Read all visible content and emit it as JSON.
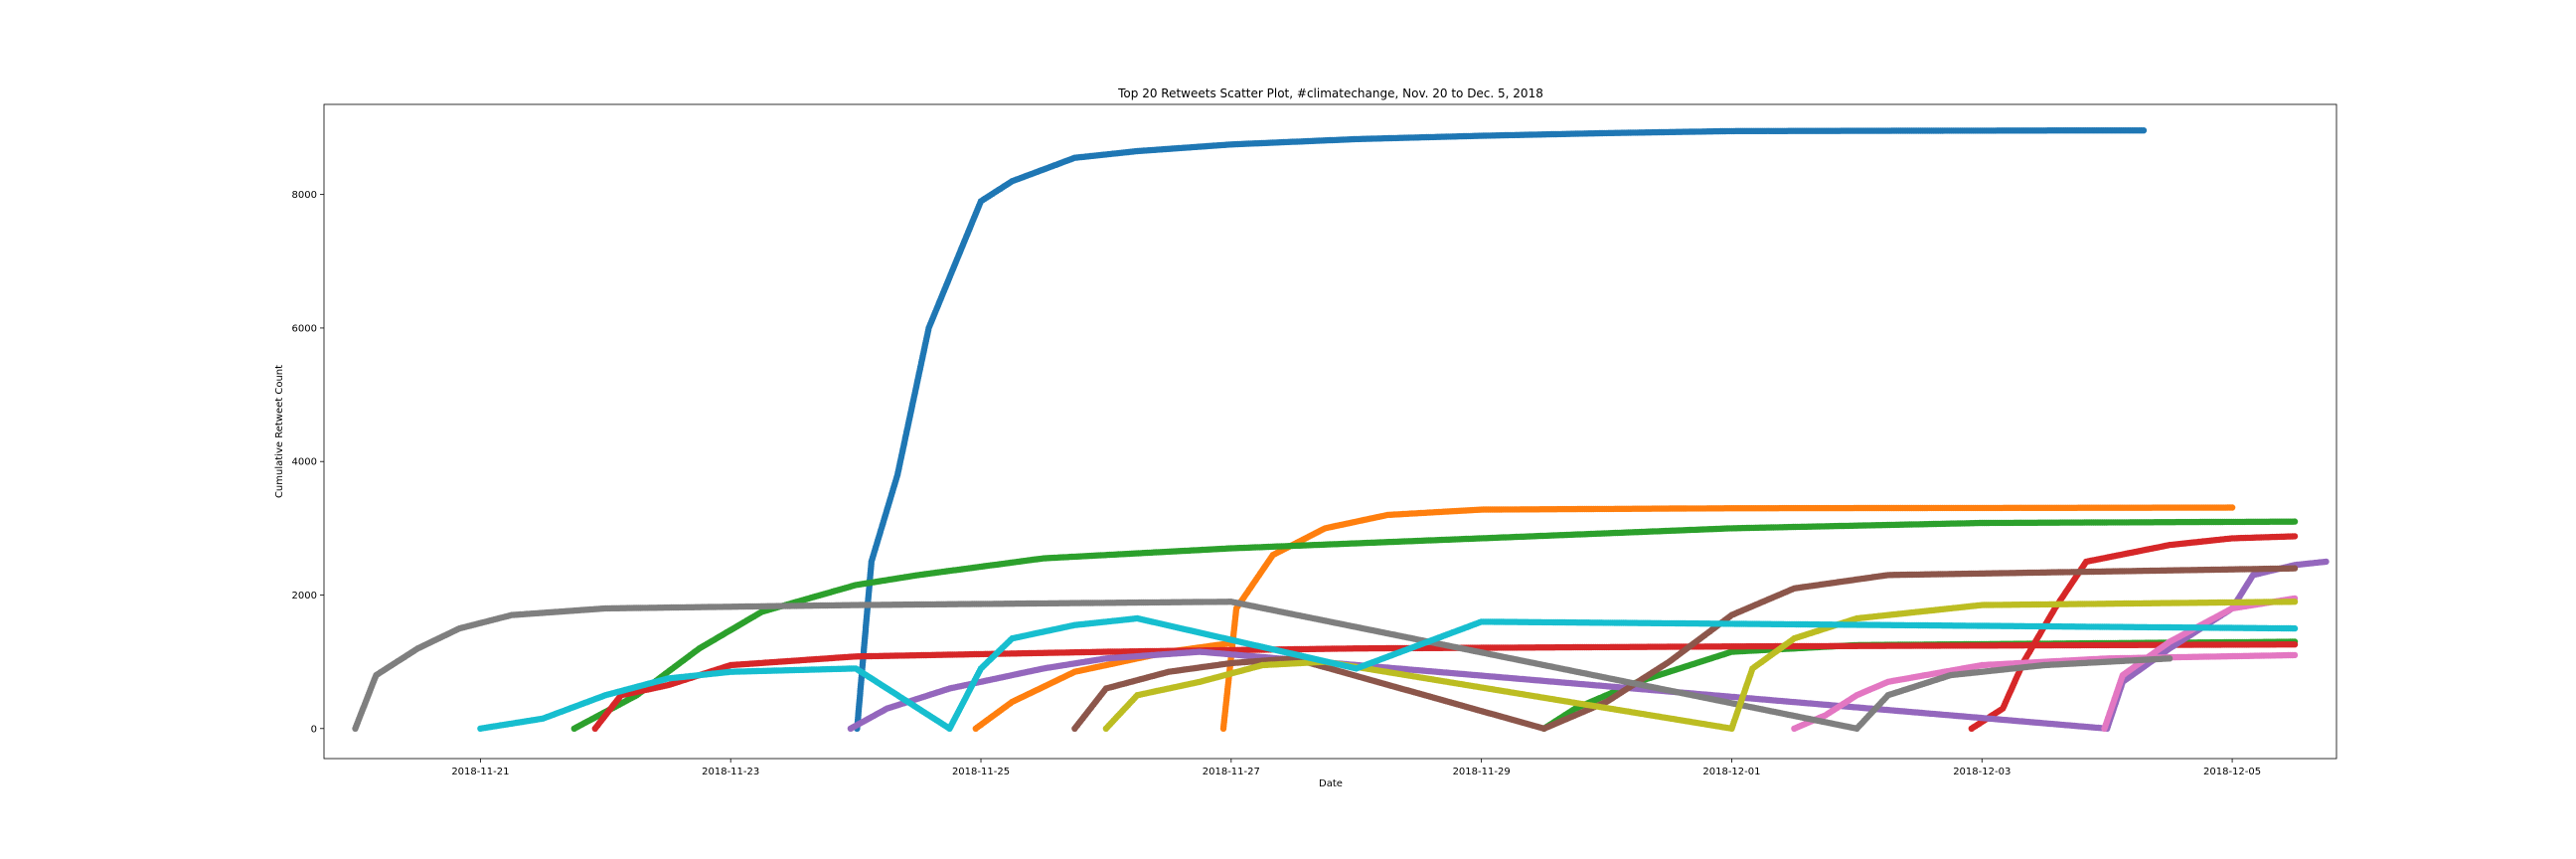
{
  "chart_data": {
    "type": "scatter",
    "title": "Top 20 Retweets Scatter Plot, #climatechange, Nov. 20 to Dec. 5, 2018",
    "xlabel": "Date",
    "ylabel": "Cumulative Retweet Count",
    "xlim": [
      "2018-11-19T18:00",
      "2018-12-05T20:00"
    ],
    "ylim": [
      -450,
      9350
    ],
    "grid": false,
    "legend": "none",
    "x_ticks": [
      "2018-11-21",
      "2018-11-23",
      "2018-11-25",
      "2018-11-27",
      "2018-11-29",
      "2018-12-01",
      "2018-12-03",
      "2018-12-05"
    ],
    "y_ticks": [
      0,
      2000,
      4000,
      6000,
      8000
    ],
    "series": [
      {
        "color": "#1f77b4",
        "points": [
          [
            "2018-11-24T00:15",
            0
          ],
          [
            "2018-11-24T03:00",
            2500
          ],
          [
            "2018-11-24T08:00",
            3800
          ],
          [
            "2018-11-24T14:00",
            6000
          ],
          [
            "2018-11-25T00:00",
            7900
          ],
          [
            "2018-11-25T06:00",
            8200
          ],
          [
            "2018-11-25T18:00",
            8550
          ],
          [
            "2018-11-26T06:00",
            8650
          ],
          [
            "2018-11-27T00:00",
            8750
          ],
          [
            "2018-11-28T00:00",
            8830
          ],
          [
            "2018-11-29T00:00",
            8880
          ],
          [
            "2018-11-30T00:00",
            8920
          ],
          [
            "2018-12-01T00:00",
            8950
          ],
          [
            "2018-12-03T19:00",
            8960
          ],
          [
            "2018-12-04T07:00",
            8960
          ]
        ]
      },
      {
        "color": "#ff7f0e",
        "points": [
          [
            "2018-11-24T23:00",
            0
          ],
          [
            "2018-11-25T06:00",
            400
          ],
          [
            "2018-11-25T18:00",
            850
          ],
          [
            "2018-11-26T12:00",
            1150
          ],
          [
            "2018-11-27T00:00",
            1280
          ],
          [
            "2018-11-26T22:30",
            0
          ],
          [
            "2018-11-27T01:00",
            1800
          ],
          [
            "2018-11-27T08:00",
            2600
          ],
          [
            "2018-11-27T18:00",
            3000
          ],
          [
            "2018-11-28T06:00",
            3200
          ],
          [
            "2018-11-29T00:00",
            3280
          ],
          [
            "2018-12-01T00:00",
            3300
          ],
          [
            "2018-12-05T00:00",
            3310
          ]
        ]
      },
      {
        "color": "#2ca02c",
        "points": [
          [
            "2018-11-21T18:00",
            0
          ],
          [
            "2018-11-22T06:00",
            500
          ],
          [
            "2018-11-22T18:00",
            1200
          ],
          [
            "2018-11-23T06:00",
            1750
          ],
          [
            "2018-11-24T00:00",
            2150
          ],
          [
            "2018-11-24T12:00",
            2300
          ],
          [
            "2018-11-25T12:00",
            2550
          ],
          [
            "2018-11-27T00:00",
            2700
          ],
          [
            "2018-11-29T00:00",
            2850
          ],
          [
            "2018-12-01T00:00",
            3000
          ],
          [
            "2018-12-03T00:00",
            3080
          ],
          [
            "2018-12-05T12:00",
            3100
          ],
          [
            "2018-11-29T12:00",
            0
          ],
          [
            "2018-11-29T18:00",
            300
          ],
          [
            "2018-11-30T06:00",
            700
          ],
          [
            "2018-11-30T18:00",
            1000
          ],
          [
            "2018-12-01T00:00",
            1150
          ],
          [
            "2018-12-02T00:00",
            1250
          ],
          [
            "2018-12-05T12:00",
            1300
          ]
        ]
      },
      {
        "color": "#d62728",
        "points": [
          [
            "2018-11-21T22:00",
            0
          ],
          [
            "2018-11-22T03:00",
            500
          ],
          [
            "2018-11-22T12:00",
            650
          ],
          [
            "2018-11-23T00:00",
            950
          ],
          [
            "2018-11-24T00:00",
            1080
          ],
          [
            "2018-11-26T00:00",
            1150
          ],
          [
            "2018-11-28T00:00",
            1200
          ],
          [
            "2018-12-01T00:00",
            1230
          ],
          [
            "2018-12-05T12:00",
            1260
          ],
          [
            "2018-12-02T22:00",
            0
          ],
          [
            "2018-12-03T04:00",
            300
          ],
          [
            "2018-12-03T08:00",
            1000
          ],
          [
            "2018-12-03T14:00",
            1800
          ],
          [
            "2018-12-03T20:00",
            2500
          ],
          [
            "2018-12-04T12:00",
            2750
          ],
          [
            "2018-12-05T00:00",
            2850
          ],
          [
            "2018-12-05T12:00",
            2880
          ]
        ]
      },
      {
        "color": "#9467bd",
        "points": [
          [
            "2018-11-23T23:00",
            0
          ],
          [
            "2018-11-24T06:00",
            300
          ],
          [
            "2018-11-24T18:00",
            600
          ],
          [
            "2018-11-25T12:00",
            900
          ],
          [
            "2018-11-26T00:00",
            1050
          ],
          [
            "2018-11-26T18:00",
            1150
          ],
          [
            "2018-12-04T00:00",
            0
          ],
          [
            "2018-12-04T03:00",
            700
          ],
          [
            "2018-12-04T12:00",
            1200
          ],
          [
            "2018-12-05T00:00",
            1800
          ],
          [
            "2018-12-05T04:00",
            2300
          ],
          [
            "2018-12-05T12:00",
            2450
          ],
          [
            "2018-12-05T18:00",
            2500
          ]
        ]
      },
      {
        "color": "#8c564b",
        "points": [
          [
            "2018-11-25T18:00",
            0
          ],
          [
            "2018-11-26T00:00",
            600
          ],
          [
            "2018-11-26T12:00",
            850
          ],
          [
            "2018-11-27T00:00",
            980
          ],
          [
            "2018-11-27T12:00",
            1050
          ],
          [
            "2018-11-29T12:00",
            0
          ],
          [
            "2018-11-30T00:00",
            400
          ],
          [
            "2018-11-30T12:00",
            1000
          ],
          [
            "2018-12-01T00:00",
            1700
          ],
          [
            "2018-12-01T12:00",
            2100
          ],
          [
            "2018-12-02T06:00",
            2300
          ],
          [
            "2018-12-05T12:00",
            2400
          ]
        ]
      },
      {
        "color": "#e377c2",
        "points": [
          [
            "2018-12-01T12:00",
            0
          ],
          [
            "2018-12-01T18:00",
            200
          ],
          [
            "2018-12-02T00:00",
            500
          ],
          [
            "2018-12-02T06:00",
            700
          ],
          [
            "2018-12-03T00:00",
            950
          ],
          [
            "2018-12-04T00:00",
            1050
          ],
          [
            "2018-12-05T12:00",
            1100
          ],
          [
            "2018-12-03T23:30",
            0
          ],
          [
            "2018-12-04T03:00",
            800
          ],
          [
            "2018-12-04T12:00",
            1300
          ],
          [
            "2018-12-05T00:00",
            1800
          ],
          [
            "2018-12-05T12:00",
            1950
          ]
        ]
      },
      {
        "color": "#7f7f7f",
        "points": [
          [
            "2018-11-20T00:00",
            0
          ],
          [
            "2018-11-20T04:00",
            800
          ],
          [
            "2018-11-20T12:00",
            1200
          ],
          [
            "2018-11-20T20:00",
            1500
          ],
          [
            "2018-11-21T06:00",
            1700
          ],
          [
            "2018-11-22T00:00",
            1800
          ],
          [
            "2018-11-24T00:00",
            1850
          ],
          [
            "2018-11-27T00:00",
            1900
          ],
          [
            "2018-12-02T00:00",
            0
          ],
          [
            "2018-12-02T06:00",
            500
          ],
          [
            "2018-12-02T18:00",
            800
          ],
          [
            "2018-12-03T12:00",
            950
          ],
          [
            "2018-12-04T12:00",
            1050
          ]
        ]
      },
      {
        "color": "#bcbd22",
        "points": [
          [
            "2018-11-26T00:00",
            0
          ],
          [
            "2018-11-26T06:00",
            500
          ],
          [
            "2018-11-26T18:00",
            700
          ],
          [
            "2018-11-27T06:00",
            950
          ],
          [
            "2018-11-27T18:00",
            1000
          ],
          [
            "2018-12-01T00:00",
            0
          ],
          [
            "2018-12-01T04:00",
            900
          ],
          [
            "2018-12-01T12:00",
            1350
          ],
          [
            "2018-12-02T00:00",
            1650
          ],
          [
            "2018-12-03T00:00",
            1850
          ],
          [
            "2018-12-05T12:00",
            1900
          ]
        ]
      },
      {
        "color": "#17becf",
        "points": [
          [
            "2018-11-21T00:00",
            0
          ],
          [
            "2018-11-21T12:00",
            150
          ],
          [
            "2018-11-22T00:00",
            500
          ],
          [
            "2018-11-22T12:00",
            750
          ],
          [
            "2018-11-23T00:00",
            850
          ],
          [
            "2018-11-24T00:00",
            900
          ],
          [
            "2018-11-24T18:00",
            0
          ],
          [
            "2018-11-25T00:00",
            900
          ],
          [
            "2018-11-25T06:00",
            1350
          ],
          [
            "2018-11-25T18:00",
            1550
          ],
          [
            "2018-11-26T06:00",
            1650
          ],
          [
            "2018-11-28T00:00",
            900
          ],
          [
            "2018-11-29T00:00",
            1600
          ],
          [
            "2018-12-05T12:00",
            1500
          ]
        ]
      }
    ]
  }
}
